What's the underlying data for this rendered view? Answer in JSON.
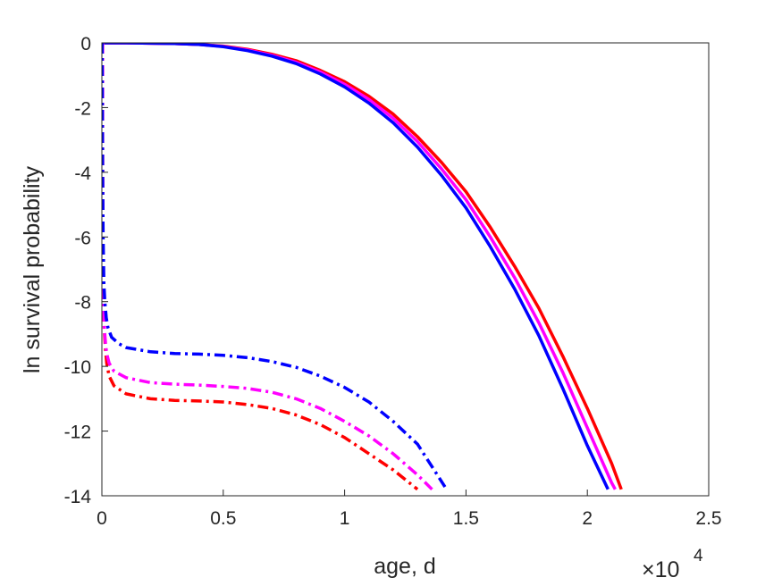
{
  "chart_data": {
    "type": "line",
    "title": "",
    "xlabel": "age, d",
    "ylabel": "ln survival probability",
    "x_exponent_label": {
      "base": "×10",
      "exp": "4"
    },
    "xlim": [
      0,
      2.5
    ],
    "ylim": [
      -14,
      0
    ],
    "x_ticks": [
      0,
      0.5,
      1,
      1.5,
      2,
      2.5
    ],
    "x_tick_labels": [
      "0",
      "0.5",
      "1",
      "1.5",
      "2",
      "2.5"
    ],
    "y_ticks": [
      0,
      -2,
      -4,
      -6,
      -8,
      -10,
      -12,
      -14
    ],
    "y_tick_labels": [
      "0",
      "-2",
      "-4",
      "-6",
      "-8",
      "-10",
      "-12",
      "-14"
    ],
    "grid": false,
    "legend": "none",
    "x_units_note": "x values in units of 10^4 days",
    "series": [
      {
        "color": "#ff0000",
        "style": "solid",
        "x": [
          0,
          0.1,
          0.2,
          0.3,
          0.4,
          0.5,
          0.6,
          0.7,
          0.8,
          0.9,
          1.0,
          1.1,
          1.2,
          1.3,
          1.4,
          1.5,
          1.6,
          1.7,
          1.8,
          1.9,
          2.0,
          2.1,
          2.14
        ],
        "y": [
          0,
          0,
          -0.01,
          -0.02,
          -0.05,
          -0.1,
          -0.2,
          -0.35,
          -0.55,
          -0.85,
          -1.2,
          -1.65,
          -2.2,
          -2.9,
          -3.7,
          -4.6,
          -5.7,
          -6.9,
          -8.2,
          -9.7,
          -11.3,
          -13.0,
          -13.8
        ]
      },
      {
        "color": "#ff00ff",
        "style": "solid",
        "x": [
          0,
          0.1,
          0.2,
          0.3,
          0.4,
          0.5,
          0.6,
          0.7,
          0.8,
          0.9,
          1.0,
          1.1,
          1.2,
          1.3,
          1.4,
          1.5,
          1.6,
          1.7,
          1.8,
          1.9,
          2.0,
          2.1,
          2.115
        ],
        "y": [
          0,
          0,
          -0.01,
          -0.02,
          -0.05,
          -0.11,
          -0.22,
          -0.38,
          -0.6,
          -0.9,
          -1.28,
          -1.75,
          -2.33,
          -3.05,
          -3.9,
          -4.85,
          -6.0,
          -7.25,
          -8.65,
          -10.2,
          -11.9,
          -13.6,
          -13.8
        ]
      },
      {
        "color": "#0000ff",
        "style": "solid",
        "x": [
          0,
          0.1,
          0.2,
          0.3,
          0.4,
          0.5,
          0.6,
          0.7,
          0.8,
          0.9,
          1.0,
          1.1,
          1.2,
          1.3,
          1.4,
          1.5,
          1.6,
          1.7,
          1.8,
          1.9,
          2.0,
          2.085
        ],
        "y": [
          0,
          0,
          -0.01,
          -0.02,
          -0.05,
          -0.12,
          -0.24,
          -0.41,
          -0.64,
          -0.96,
          -1.36,
          -1.86,
          -2.47,
          -3.22,
          -4.1,
          -5.1,
          -6.3,
          -7.6,
          -9.05,
          -10.7,
          -12.45,
          -13.8
        ]
      },
      {
        "color": "#ff0000",
        "style": "dashdot",
        "x": [
          0.003,
          0.004,
          0.006,
          0.01,
          0.015,
          0.02,
          0.03,
          0.05,
          0.1,
          0.2,
          0.3,
          0.4,
          0.5,
          0.6,
          0.7,
          0.8,
          0.9,
          1.0,
          1.1,
          1.2,
          1.3
        ],
        "y": [
          -3,
          -6,
          -7.8,
          -8.9,
          -9.5,
          -9.9,
          -10.3,
          -10.6,
          -10.85,
          -11.0,
          -11.05,
          -11.07,
          -11.1,
          -11.18,
          -11.3,
          -11.5,
          -11.8,
          -12.2,
          -12.7,
          -13.2,
          -13.8
        ]
      },
      {
        "color": "#ff00ff",
        "style": "dashdot",
        "x": [
          0.003,
          0.004,
          0.006,
          0.01,
          0.015,
          0.02,
          0.03,
          0.05,
          0.1,
          0.2,
          0.3,
          0.4,
          0.5,
          0.6,
          0.7,
          0.8,
          0.9,
          1.0,
          1.1,
          1.2,
          1.3,
          1.36
        ],
        "y": [
          -3,
          -6,
          -7.8,
          -8.8,
          -9.3,
          -9.6,
          -9.9,
          -10.15,
          -10.35,
          -10.5,
          -10.55,
          -10.58,
          -10.62,
          -10.68,
          -10.8,
          -11.0,
          -11.3,
          -11.7,
          -12.15,
          -12.7,
          -13.35,
          -13.8
        ]
      },
      {
        "color": "#0000ff",
        "style": "dashdot",
        "x": [
          0.001,
          0.002,
          0.003,
          0.005,
          0.008,
          0.012,
          0.018,
          0.025,
          0.04,
          0.07,
          0.1,
          0.2,
          0.3,
          0.4,
          0.5,
          0.6,
          0.7,
          0.8,
          0.9,
          1.0,
          1.1,
          1.2,
          1.3,
          1.42
        ],
        "y": [
          -0.5,
          -2,
          -4,
          -6,
          -7.4,
          -8.0,
          -8.5,
          -8.8,
          -9.1,
          -9.3,
          -9.42,
          -9.55,
          -9.6,
          -9.62,
          -9.66,
          -9.73,
          -9.85,
          -10.03,
          -10.3,
          -10.65,
          -11.1,
          -11.7,
          -12.4,
          -13.8
        ]
      }
    ]
  }
}
